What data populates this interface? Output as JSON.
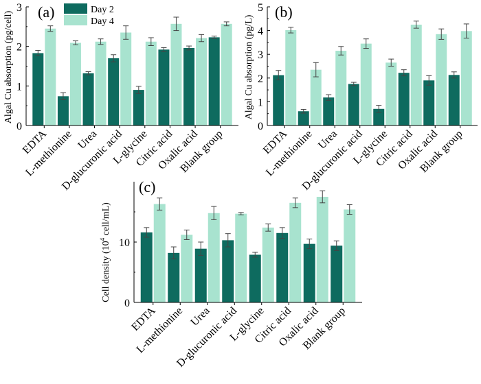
{
  "colors": {
    "day2": "#0e6b5f",
    "day4": "#a8e3cf"
  },
  "legend": {
    "day2": "Day 2",
    "day4": "Day 4"
  },
  "chart_data": [
    {
      "panel_label": "(a)",
      "type": "bar",
      "ylabel": "Algal Cu absorption (pg/cell)",
      "ylim": [
        0,
        3
      ],
      "yticks": [
        "0",
        "1",
        "2",
        "3"
      ],
      "yticks_values": [
        0,
        1,
        2,
        3
      ],
      "categories": [
        "EDTA",
        "L-methionine",
        "Urea",
        "D-glucuronic acid",
        "L-glycine",
        "Citric acid",
        "Oxalic acid",
        "Blank group"
      ],
      "series": [
        {
          "name": "Day 2",
          "values": [
            1.83,
            0.74,
            1.32,
            1.7,
            0.9,
            1.92,
            1.96,
            2.23
          ],
          "errors": [
            0.07,
            0.09,
            0.04,
            0.09,
            0.09,
            0.05,
            0.05,
            0.03
          ]
        },
        {
          "name": "Day 4",
          "values": [
            2.45,
            2.09,
            2.12,
            2.35,
            2.12,
            2.57,
            2.21,
            2.57
          ],
          "errors": [
            0.07,
            0.05,
            0.07,
            0.17,
            0.1,
            0.17,
            0.09,
            0.05
          ]
        }
      ]
    },
    {
      "panel_label": "(b)",
      "type": "bar",
      "ylabel": "Algal Cu absorption (pg/L)",
      "ylim": [
        0,
        5
      ],
      "yticks": [
        "0",
        "1",
        "2",
        "3",
        "4",
        "5"
      ],
      "yticks_values": [
        0,
        1,
        2,
        3,
        4,
        5
      ],
      "categories": [
        "EDTA",
        "L-methionine",
        "Urea",
        "D-glucuronic acid",
        "L-glycine",
        "Citric acid",
        "Oxalic acid",
        "Blank group"
      ],
      "series": [
        {
          "name": "Day 2",
          "values": [
            2.12,
            0.6,
            1.18,
            1.75,
            0.7,
            2.22,
            1.9,
            2.13
          ],
          "errors": [
            0.2,
            0.08,
            0.12,
            0.07,
            0.15,
            0.13,
            0.2,
            0.13
          ]
        },
        {
          "name": "Day 4",
          "values": [
            4.02,
            2.35,
            3.15,
            3.45,
            2.65,
            4.25,
            3.85,
            3.98
          ],
          "errors": [
            0.12,
            0.3,
            0.18,
            0.2,
            0.15,
            0.15,
            0.22,
            0.3
          ]
        }
      ]
    },
    {
      "panel_label": "(c)",
      "type": "bar",
      "ylabel_main": "Cell density (10",
      "ylabel_sup": "4",
      "ylabel_tail": " cell/mL)",
      "ylim": [
        0,
        20
      ],
      "yticks": [
        "0",
        "10"
      ],
      "yticks_values": [
        0,
        10
      ],
      "categories": [
        "EDTA",
        "L-methionine",
        "Urea",
        "D-glucuronic acid",
        "L-glycine",
        "Citric acid",
        "Oxalic acid",
        "Blank group"
      ],
      "series": [
        {
          "name": "Day 2",
          "values": [
            11.6,
            8.2,
            8.9,
            10.3,
            7.9,
            11.5,
            9.7,
            9.4
          ],
          "errors": [
            0.8,
            1.0,
            1.1,
            1.1,
            0.4,
            0.9,
            0.8,
            0.8
          ]
        },
        {
          "name": "Day 4",
          "values": [
            16.3,
            11.2,
            14.8,
            14.7,
            12.4,
            16.5,
            17.5,
            15.4
          ],
          "errors": [
            1.0,
            0.8,
            1.1,
            0.2,
            0.6,
            0.8,
            1.0,
            0.8
          ]
        }
      ]
    }
  ]
}
